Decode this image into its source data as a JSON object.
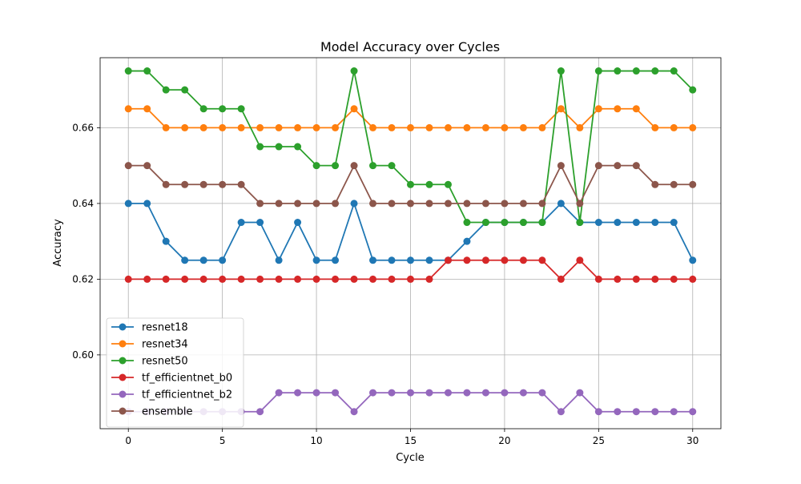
{
  "chart_data": {
    "type": "line",
    "title": "Model Accuracy over Cycles",
    "xlabel": "Cycle",
    "ylabel": "Accuracy",
    "xlim": [
      -1.5,
      31.5
    ],
    "ylim": [
      0.5805,
      0.6785
    ],
    "xticks": [
      0,
      5,
      10,
      15,
      20,
      25,
      30
    ],
    "yticks": [
      0.6,
      0.62,
      0.64,
      0.66
    ],
    "ytick_labels": [
      "0.60",
      "0.62",
      "0.64",
      "0.66"
    ],
    "grid": true,
    "legend_position": "lower-left",
    "x": [
      0,
      1,
      2,
      3,
      4,
      5,
      6,
      7,
      8,
      9,
      10,
      11,
      12,
      13,
      14,
      15,
      16,
      17,
      18,
      19,
      20,
      21,
      22,
      23,
      24,
      25,
      26,
      27,
      28,
      29,
      30
    ],
    "series": [
      {
        "name": "resnet18",
        "color": "#1f77b4",
        "values": [
          0.64,
          0.64,
          0.63,
          0.625,
          0.625,
          0.625,
          0.635,
          0.635,
          0.625,
          0.635,
          0.625,
          0.625,
          0.64,
          0.625,
          0.625,
          0.625,
          0.625,
          0.625,
          0.63,
          0.635,
          0.635,
          0.635,
          0.635,
          0.64,
          0.635,
          0.635,
          0.635,
          0.635,
          0.635,
          0.635,
          0.625
        ]
      },
      {
        "name": "resnet34",
        "color": "#ff7f0e",
        "values": [
          0.665,
          0.665,
          0.66,
          0.66,
          0.66,
          0.66,
          0.66,
          0.66,
          0.66,
          0.66,
          0.66,
          0.66,
          0.665,
          0.66,
          0.66,
          0.66,
          0.66,
          0.66,
          0.66,
          0.66,
          0.66,
          0.66,
          0.66,
          0.665,
          0.66,
          0.665,
          0.665,
          0.665,
          0.66,
          0.66,
          0.66
        ]
      },
      {
        "name": "resnet50",
        "color": "#2ca02c",
        "values": [
          0.675,
          0.675,
          0.67,
          0.67,
          0.665,
          0.665,
          0.665,
          0.655,
          0.655,
          0.655,
          0.65,
          0.65,
          0.675,
          0.65,
          0.65,
          0.645,
          0.645,
          0.645,
          0.635,
          0.635,
          0.635,
          0.635,
          0.635,
          0.675,
          0.635,
          0.675,
          0.675,
          0.675,
          0.675,
          0.675,
          0.67
        ]
      },
      {
        "name": "tf_efficientnet_b0",
        "color": "#d62728",
        "values": [
          0.62,
          0.62,
          0.62,
          0.62,
          0.62,
          0.62,
          0.62,
          0.62,
          0.62,
          0.62,
          0.62,
          0.62,
          0.62,
          0.62,
          0.62,
          0.62,
          0.62,
          0.625,
          0.625,
          0.625,
          0.625,
          0.625,
          0.625,
          0.62,
          0.625,
          0.62,
          0.62,
          0.62,
          0.62,
          0.62,
          0.62
        ]
      },
      {
        "name": "tf_efficientnet_b2",
        "color": "#9467bd",
        "values": [
          0.585,
          0.585,
          0.585,
          0.585,
          0.585,
          0.585,
          0.585,
          0.585,
          0.59,
          0.59,
          0.59,
          0.59,
          0.585,
          0.59,
          0.59,
          0.59,
          0.59,
          0.59,
          0.59,
          0.59,
          0.59,
          0.59,
          0.59,
          0.585,
          0.59,
          0.585,
          0.585,
          0.585,
          0.585,
          0.585,
          0.585
        ]
      },
      {
        "name": "ensemble",
        "color": "#8c564b",
        "values": [
          0.65,
          0.65,
          0.645,
          0.645,
          0.645,
          0.645,
          0.645,
          0.64,
          0.64,
          0.64,
          0.64,
          0.64,
          0.65,
          0.64,
          0.64,
          0.64,
          0.64,
          0.64,
          0.64,
          0.64,
          0.64,
          0.64,
          0.64,
          0.65,
          0.64,
          0.65,
          0.65,
          0.65,
          0.645,
          0.645,
          0.645
        ]
      }
    ]
  }
}
